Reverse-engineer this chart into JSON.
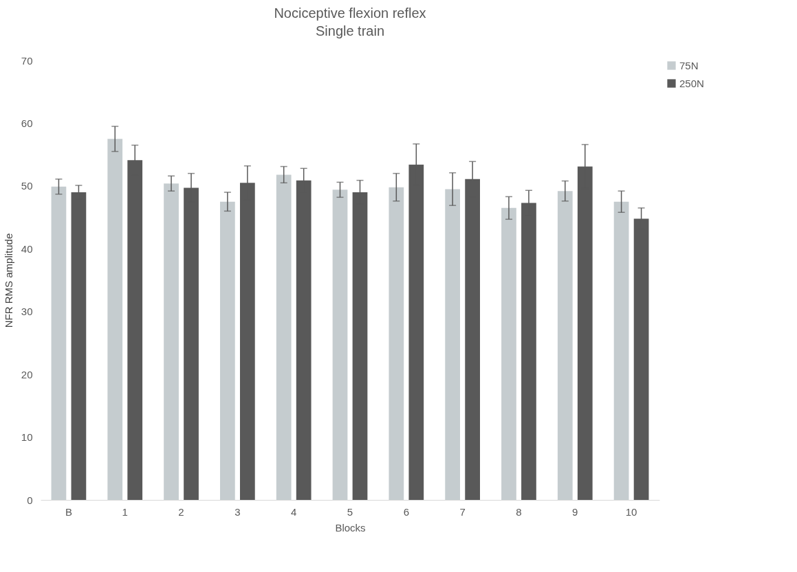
{
  "chart_data": {
    "type": "bar",
    "title": "Nociceptive flexion reflex",
    "subtitle": "Single train",
    "xlabel": "Blocks",
    "ylabel": "NFR RMS amplitude",
    "categories": [
      "B",
      "1",
      "2",
      "3",
      "4",
      "5",
      "6",
      "7",
      "8",
      "9",
      "10"
    ],
    "series": [
      {
        "name": "75N",
        "color": "#c5cccf",
        "values": [
          49.9,
          57.5,
          50.4,
          47.5,
          51.8,
          49.4,
          49.8,
          49.5,
          46.5,
          49.2,
          47.5
        ],
        "errors": [
          1.2,
          2.0,
          1.2,
          1.5,
          1.3,
          1.2,
          2.2,
          2.6,
          1.8,
          1.6,
          1.7
        ]
      },
      {
        "name": "250N",
        "color": "#595959",
        "values": [
          49.0,
          54.1,
          49.7,
          50.5,
          50.9,
          49.0,
          53.4,
          51.1,
          47.3,
          53.1,
          44.8
        ],
        "errors": [
          1.1,
          2.4,
          2.3,
          2.7,
          1.9,
          1.9,
          3.3,
          2.8,
          2.0,
          3.5,
          1.7
        ]
      }
    ],
    "ylim": [
      0,
      70
    ],
    "yticks": [
      0,
      10,
      20,
      30,
      40,
      50,
      60,
      70
    ],
    "grid": false,
    "legend": "right"
  }
}
